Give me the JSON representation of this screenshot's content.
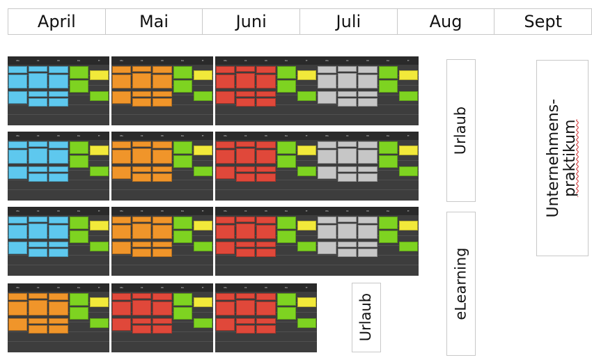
{
  "months": [
    "April",
    "Mai",
    "Juni",
    "Juli",
    "Aug",
    "Sept"
  ],
  "day_headers": [
    "Mo",
    "Di",
    "Mi",
    "Do",
    "Fr"
  ],
  "colors": {
    "cyan": "#5ec8ee",
    "orange": "#f0952a",
    "red": "#e0483a",
    "gray": "#c6c6c6",
    "yellow": "#f2e93a",
    "green": "#7ed321",
    "calendar_bg": "#3d3d3d"
  },
  "rows": [
    [
      "cyan",
      "orange",
      "red",
      "gray"
    ],
    [
      "cyan",
      "orange",
      "red",
      "gray"
    ],
    [
      "cyan",
      "orange",
      "red",
      "gray"
    ],
    [
      "orange",
      "red",
      "red"
    ]
  ],
  "boxes": {
    "urlaub_top": "Urlaub",
    "urlaub_bottom": "Urlaub",
    "elearning": "eLearning",
    "praktikum_line1": "Unternehmens-",
    "praktikum_line2": "praktikum"
  }
}
